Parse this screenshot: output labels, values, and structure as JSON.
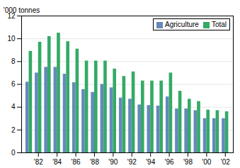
{
  "chart_data": {
    "type": "bar",
    "ylabel": "’000 tonnes",
    "x": [
      1981,
      1982,
      1983,
      1984,
      1985,
      1986,
      1987,
      1988,
      1989,
      1990,
      1991,
      1992,
      1993,
      1994,
      1995,
      1996,
      1997,
      1998,
      1999,
      2000,
      2001,
      2002
    ],
    "series": [
      {
        "name": "Agriculture",
        "color": "#6688bb",
        "values": [
          6.2,
          7.0,
          7.5,
          7.5,
          6.9,
          6.15,
          5.55,
          5.3,
          6.0,
          5.7,
          4.8,
          4.7,
          4.2,
          4.15,
          4.1,
          4.9,
          3.85,
          3.85,
          3.7,
          3.0,
          3.0,
          3.0
        ]
      },
      {
        "name": "Total",
        "color": "#33aa66",
        "values": [
          8.9,
          9.7,
          10.2,
          10.5,
          9.75,
          9.1,
          8.05,
          8.05,
          8.05,
          7.35,
          6.7,
          7.1,
          6.3,
          6.3,
          6.3,
          7.0,
          5.4,
          4.7,
          4.5,
          3.75,
          3.7,
          3.6
        ]
      }
    ],
    "xlim": [
      1980.2,
      2002.85
    ],
    "xticks": [
      {
        "value": 1982,
        "label": "'82"
      },
      {
        "value": 1984,
        "label": "'84"
      },
      {
        "value": 1986,
        "label": "'86"
      },
      {
        "value": 1988,
        "label": "'88"
      },
      {
        "value": 1990,
        "label": "'90"
      },
      {
        "value": 1992,
        "label": "'92"
      },
      {
        "value": 1994,
        "label": "'94"
      },
      {
        "value": 1996,
        "label": "'96"
      },
      {
        "value": 1998,
        "label": "'98"
      },
      {
        "value": 2000,
        "label": "'00"
      },
      {
        "value": 2002,
        "label": "'02"
      }
    ],
    "ylim": [
      0,
      12
    ],
    "yticks": [
      0,
      2,
      4,
      6,
      8,
      10,
      12
    ],
    "grid": true,
    "legend": "upper right"
  }
}
